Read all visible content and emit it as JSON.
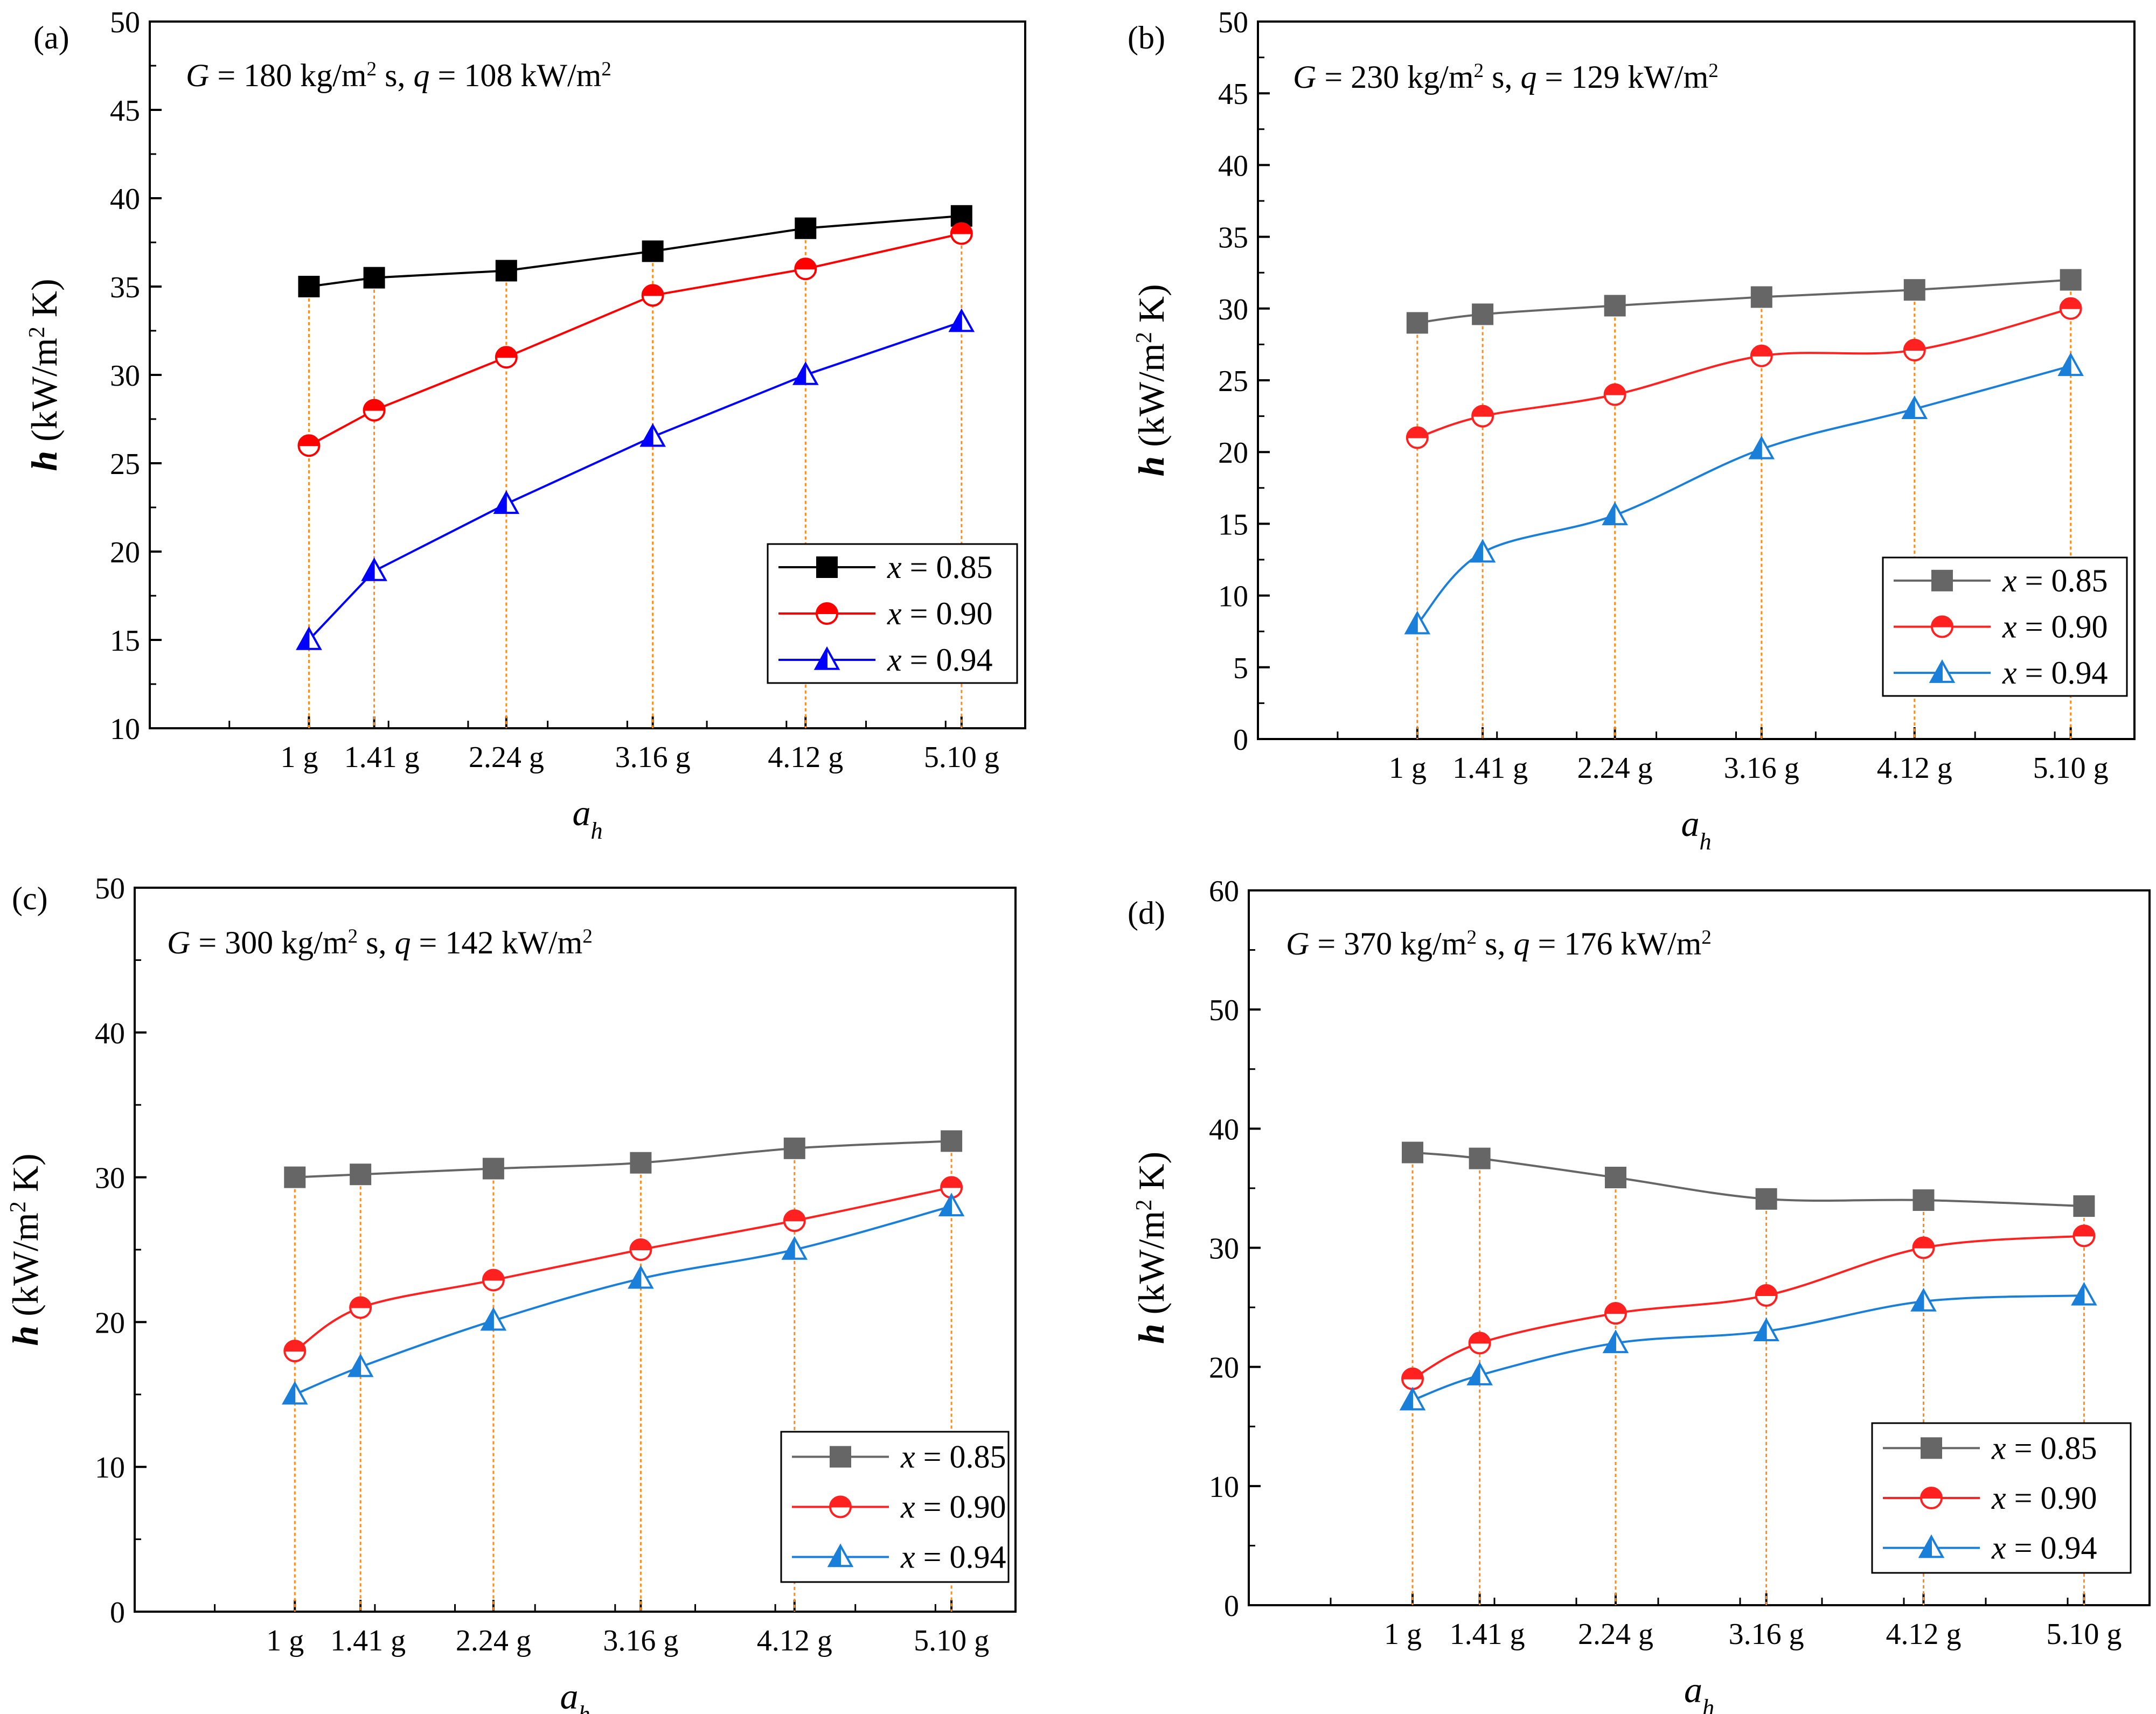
{
  "chart_data": [
    {
      "type": "line",
      "panel": "(a)",
      "annotation": "G = 180 kg/m² s, q = 108 kW/m²",
      "title": "",
      "xlabel": "a_h",
      "ylabel": "h (kW/m² K)",
      "categories": [
        "1 g",
        "1.41 g",
        "2.24 g",
        "3.16 g",
        "4.12 g",
        "5.10 g"
      ],
      "x": [
        1,
        1.41,
        2.24,
        3.16,
        4.12,
        5.1
      ],
      "xlim": [
        0,
        5.5
      ],
      "ylim": [
        10,
        50
      ],
      "yticks": [
        10,
        15,
        20,
        25,
        30,
        35,
        40,
        45,
        50
      ],
      "legend_position": "bottom-right",
      "series": [
        {
          "name": "x = 0.85",
          "values": [
            35,
            35.5,
            35.9,
            37,
            38.3,
            39
          ],
          "color": "#000000",
          "marker": "square"
        },
        {
          "name": "x = 0.90",
          "values": [
            26,
            28,
            31,
            34.5,
            36,
            38
          ],
          "color": "#ff0000",
          "marker": "half-circle"
        },
        {
          "name": "x = 0.94",
          "values": [
            15,
            18.9,
            22.7,
            26.5,
            30,
            33
          ],
          "color": "#0000ff",
          "marker": "half-triangle"
        }
      ]
    },
    {
      "type": "line",
      "panel": "(b)",
      "annotation": "G = 230 kg/m² s, q = 129 kW/m²",
      "title": "",
      "xlabel": "a_h",
      "ylabel": "h (kW/m² K)",
      "categories": [
        "1 g",
        "1.41 g",
        "2.24 g",
        "3.16 g",
        "4.12 g",
        "5.10 g"
      ],
      "x": [
        1,
        1.41,
        2.24,
        3.16,
        4.12,
        5.1
      ],
      "xlim": [
        0,
        5.5
      ],
      "ylim": [
        0,
        50
      ],
      "yticks": [
        0,
        5,
        10,
        15,
        20,
        25,
        30,
        35,
        40,
        45,
        50
      ],
      "legend_position": "bottom-right",
      "series": [
        {
          "name": "x = 0.85",
          "values": [
            29,
            29.6,
            30.2,
            30.8,
            31.3,
            32
          ],
          "color": "#666666",
          "marker": "square"
        },
        {
          "name": "x = 0.90",
          "values": [
            21,
            22.5,
            24,
            26.7,
            27.1,
            30
          ],
          "color": "#ff2020",
          "marker": "half-circle"
        },
        {
          "name": "x = 0.94",
          "values": [
            8,
            13,
            15.6,
            20.2,
            23,
            26
          ],
          "color": "#1a7fd9",
          "marker": "half-triangle"
        }
      ]
    },
    {
      "type": "line",
      "panel": "(c)",
      "annotation": "G = 300 kg/m² s, q = 142 kW/m²",
      "title": "",
      "xlabel": "a_h",
      "ylabel": "h (kW/m² K)",
      "categories": [
        "1 g",
        "1.41 g",
        "2.24 g",
        "3.16 g",
        "4.12 g",
        "5.10 g"
      ],
      "x": [
        1,
        1.41,
        2.24,
        3.16,
        4.12,
        5.1
      ],
      "xlim": [
        0,
        5.5
      ],
      "ylim": [
        0,
        50
      ],
      "yticks": [
        0,
        10,
        20,
        30,
        40,
        50
      ],
      "legend_position": "bottom-right",
      "series": [
        {
          "name": "x = 0.85",
          "values": [
            30,
            30.2,
            30.6,
            31,
            32,
            32.5
          ],
          "color": "#666666",
          "marker": "square"
        },
        {
          "name": "x = 0.90",
          "values": [
            18,
            21,
            22.9,
            25,
            27,
            29.3
          ],
          "color": "#ff2020",
          "marker": "half-circle"
        },
        {
          "name": "x = 0.94",
          "values": [
            15,
            16.9,
            20.1,
            23,
            25,
            28
          ],
          "color": "#1a7fd9",
          "marker": "half-triangle"
        }
      ]
    },
    {
      "type": "line",
      "panel": "(d)",
      "annotation": "G = 370 kg/m² s, q = 176 kW/m²",
      "title": "",
      "xlabel": "a_h",
      "ylabel": "h (kW/m² K)",
      "categories": [
        "1 g",
        "1.41 g",
        "2.24 g",
        "3.16 g",
        "4.12 g",
        "5.10 g"
      ],
      "x": [
        1,
        1.41,
        2.24,
        3.16,
        4.12,
        5.1
      ],
      "xlim": [
        0,
        5.5
      ],
      "ylim": [
        0,
        60
      ],
      "yticks": [
        0,
        10,
        20,
        30,
        40,
        50,
        60
      ],
      "legend_position": "bottom-right",
      "series": [
        {
          "name": "x = 0.85",
          "values": [
            38,
            37.5,
            35.9,
            34.1,
            34,
            33.5
          ],
          "color": "#666666",
          "marker": "square"
        },
        {
          "name": "x = 0.90",
          "values": [
            19,
            22,
            24.5,
            26,
            30,
            31
          ],
          "color": "#ff2020",
          "marker": "half-circle"
        },
        {
          "name": "x = 0.94",
          "values": [
            17.2,
            19.3,
            22,
            23,
            25.5,
            26
          ],
          "color": "#1a7fd9",
          "marker": "half-triangle"
        }
      ]
    }
  ]
}
